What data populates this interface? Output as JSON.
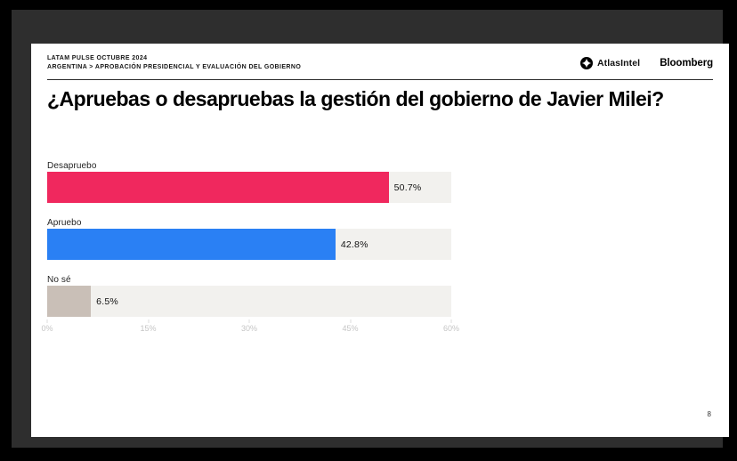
{
  "header": {
    "kicker_line1": "LATAM PULSE OCTUBRE 2024",
    "kicker_line2": "ARGENTINA > APROBACIÓN PRESIDENCIAL Y EVALUACIÓN DEL GOBIERNO",
    "logos": {
      "atlasintel": "AtlasIntel",
      "bloomberg": "Bloomberg"
    }
  },
  "title": "¿Apruebas o desapruebas la gestión del gobierno de Javier Milei?",
  "chart_data": {
    "type": "bar",
    "orientation": "horizontal",
    "title": "¿Apruebas o desapruebas la gestión del gobierno de Javier Milei?",
    "categories": [
      "Desapruebo",
      "Apruebo",
      "No sé"
    ],
    "values": [
      50.7,
      42.8,
      6.5
    ],
    "value_labels": [
      "50.7%",
      "42.8%",
      "6.5%"
    ],
    "bar_colors": [
      "#F0285E",
      "#2A80F4",
      "#C9BFB7"
    ],
    "track_color": "#F2F1EE",
    "xlabel": "",
    "ylabel": "",
    "xlim": [
      0,
      60
    ],
    "x_ticks": [
      "0%",
      "15%",
      "30%",
      "45%",
      "60%"
    ],
    "x_tick_values": [
      0,
      15,
      30,
      45,
      60
    ],
    "grid": false,
    "legend": false
  },
  "footer": {
    "page_number": "8"
  }
}
